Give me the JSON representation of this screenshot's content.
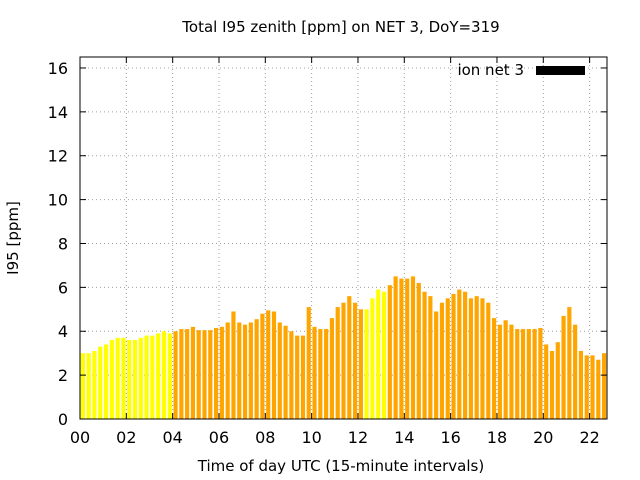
{
  "chart_data": {
    "type": "bar",
    "title": "Total I95 zenith [ppm] on NET 3, DoY=319",
    "xlabel": "Time of day UTC (15-minute intervals)",
    "ylabel": "I95 [ppm]",
    "xlim": [
      0,
      22.75
    ],
    "ylim": [
      0,
      16.5
    ],
    "x_ticks": [
      {
        "value": 0,
        "label": "00"
      },
      {
        "value": 2,
        "label": "02"
      },
      {
        "value": 4,
        "label": "04"
      },
      {
        "value": 6,
        "label": "06"
      },
      {
        "value": 8,
        "label": "08"
      },
      {
        "value": 10,
        "label": "10"
      },
      {
        "value": 12,
        "label": "12"
      },
      {
        "value": 14,
        "label": "14"
      },
      {
        "value": 16,
        "label": "16"
      },
      {
        "value": 18,
        "label": "18"
      },
      {
        "value": 20,
        "label": "20"
      },
      {
        "value": 22,
        "label": "22"
      }
    ],
    "y_ticks": [
      {
        "value": 0,
        "label": "0"
      },
      {
        "value": 2,
        "label": "2"
      },
      {
        "value": 4,
        "label": "4"
      },
      {
        "value": 6,
        "label": "6"
      },
      {
        "value": 8,
        "label": "8"
      },
      {
        "value": 10,
        "label": "10"
      },
      {
        "value": 12,
        "label": "12"
      },
      {
        "value": 14,
        "label": "14"
      },
      {
        "value": 16,
        "label": "16"
      }
    ],
    "grid": true,
    "bar_interval_hours": 0.25,
    "legend": {
      "label": "ion net 3",
      "color": "#000000",
      "position": "top-right"
    },
    "colors": {
      "yellow": "#ffff00",
      "orange": "#ffa500"
    },
    "bar_colors": "yyyyyyyyyyyyyyyyoooooooooooooooooooooooooooooooooyyyyooooooooooooooooooooooooooooooooooooooooooooooooooooyyyoooyyyyy",
    "values": [
      3.0,
      3.0,
      3.1,
      3.3,
      3.4,
      3.6,
      3.7,
      3.7,
      3.6,
      3.6,
      3.7,
      3.8,
      3.8,
      3.9,
      4.0,
      3.9,
      4.0,
      4.1,
      4.1,
      4.2,
      4.05,
      4.05,
      4.05,
      4.15,
      4.2,
      4.4,
      4.9,
      4.4,
      4.3,
      4.4,
      4.55,
      4.8,
      4.95,
      4.9,
      4.4,
      4.25,
      4.0,
      3.8,
      3.8,
      5.1,
      4.2,
      4.1,
      4.1,
      4.6,
      5.1,
      5.3,
      5.6,
      5.3,
      5.0,
      5.0,
      5.5,
      5.9,
      5.8,
      6.1,
      6.5,
      6.4,
      6.4,
      6.5,
      6.2,
      5.8,
      5.6,
      4.9,
      5.3,
      5.5,
      5.7,
      5.9,
      5.8,
      5.5,
      5.6,
      5.5,
      5.3,
      4.6,
      4.3,
      4.5,
      4.3,
      4.1,
      4.1,
      4.1,
      4.1,
      4.15,
      3.4,
      3.1,
      3.5,
      4.7,
      5.1,
      4.3,
      3.1,
      2.9,
      2.9,
      2.7,
      3.0
    ]
  }
}
